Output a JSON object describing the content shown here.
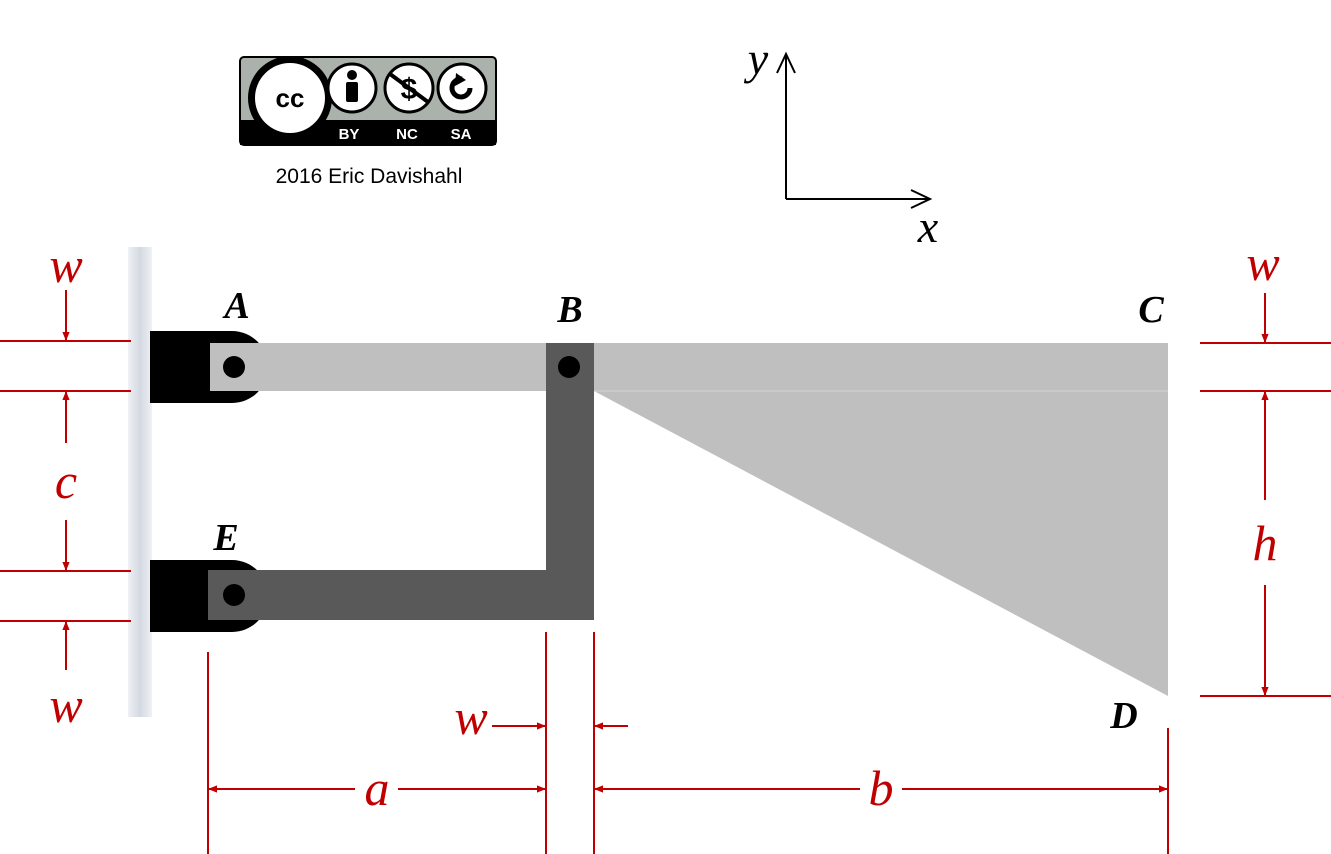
{
  "license": {
    "cc_text": "cc",
    "by": "BY",
    "nc": "NC",
    "sa": "SA",
    "credit": "2016 Eric Davishahl",
    "icons": [
      "cc-icon",
      "person-icon",
      "no-dollar-icon",
      "share-alike-icon"
    ]
  },
  "axes": {
    "x": "x",
    "y": "y"
  },
  "points": {
    "A": "A",
    "B": "B",
    "C": "C",
    "D": "D",
    "E": "E"
  },
  "dimensions": {
    "w_top_left": "w",
    "c": "c",
    "w_bottom_left": "w",
    "w_top_right": "w",
    "h": "h",
    "w_mid": "w",
    "a": "a",
    "b": "b"
  },
  "colors": {
    "dimension": "#c00000",
    "light_member": "#bfbfbf",
    "dark_member": "#595959",
    "support": "#000000",
    "wall": "#e0e4ea"
  }
}
